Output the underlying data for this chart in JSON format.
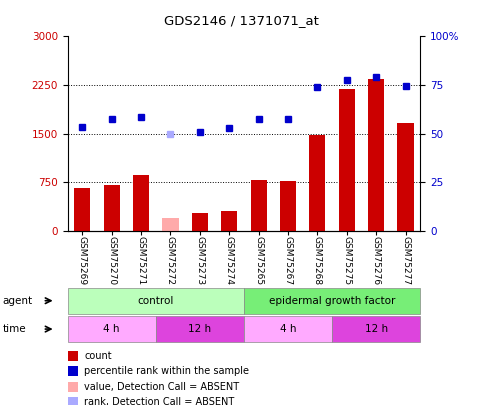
{
  "title": "GDS2146 / 1371071_at",
  "samples": [
    "GSM75269",
    "GSM75270",
    "GSM75271",
    "GSM75272",
    "GSM75273",
    "GSM75274",
    "GSM75265",
    "GSM75267",
    "GSM75268",
    "GSM75275",
    "GSM75276",
    "GSM75277"
  ],
  "bar_values": [
    660,
    700,
    860,
    200,
    280,
    310,
    790,
    770,
    1480,
    2190,
    2340,
    1660
  ],
  "bar_absent": [
    false,
    false,
    false,
    true,
    false,
    false,
    false,
    false,
    false,
    false,
    false,
    false
  ],
  "dot_values": [
    1600,
    1720,
    1750,
    1500,
    1530,
    1580,
    1730,
    1730,
    2220,
    2330,
    2370,
    2240
  ],
  "dot_absent": [
    false,
    false,
    false,
    true,
    false,
    false,
    false,
    false,
    false,
    false,
    false,
    false
  ],
  "bar_color_normal": "#cc0000",
  "bar_color_absent": "#ffaaaa",
  "dot_color_normal": "#0000cc",
  "dot_color_absent": "#aaaaff",
  "ylim_left": [
    0,
    3000
  ],
  "ylim_right": [
    0,
    100
  ],
  "yticks_left": [
    0,
    750,
    1500,
    2250,
    3000
  ],
  "yticks_right": [
    0,
    25,
    50,
    75,
    100
  ],
  "grid_values": [
    750,
    1500,
    2250
  ],
  "agent_groups": [
    {
      "label": "control",
      "start": 0,
      "end": 6,
      "color": "#bbffbb"
    },
    {
      "label": "epidermal growth factor",
      "start": 6,
      "end": 12,
      "color": "#77ee77"
    }
  ],
  "time_groups": [
    {
      "label": "4 h",
      "start": 0,
      "end": 3,
      "color": "#ffaaff"
    },
    {
      "label": "12 h",
      "start": 3,
      "end": 6,
      "color": "#dd44dd"
    },
    {
      "label": "4 h",
      "start": 6,
      "end": 9,
      "color": "#ffaaff"
    },
    {
      "label": "12 h",
      "start": 9,
      "end": 12,
      "color": "#dd44dd"
    }
  ],
  "legend_items": [
    {
      "label": "count",
      "color": "#cc0000"
    },
    {
      "label": "percentile rank within the sample",
      "color": "#0000cc"
    },
    {
      "label": "value, Detection Call = ABSENT",
      "color": "#ffaaaa"
    },
    {
      "label": "rank, Detection Call = ABSENT",
      "color": "#aaaaff"
    }
  ],
  "bg_color": "#ffffff"
}
